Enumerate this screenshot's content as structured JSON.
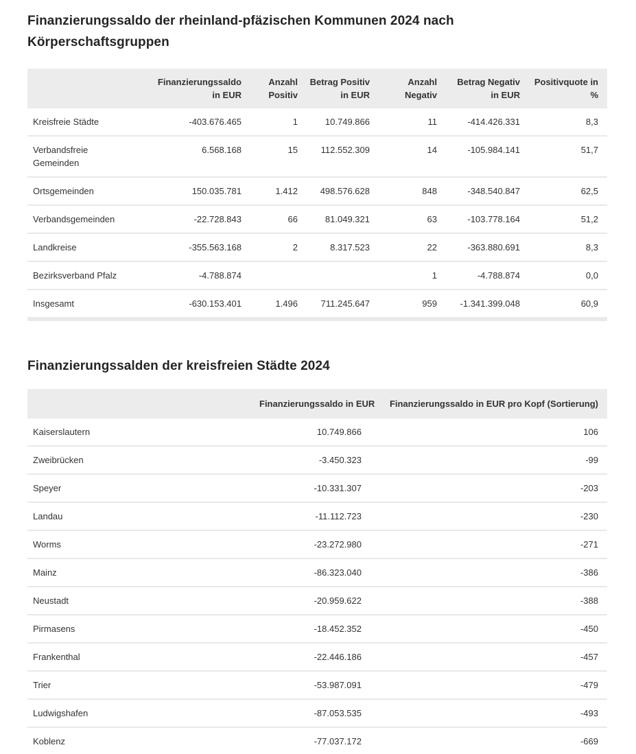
{
  "colors": {
    "header_background": "#ececec",
    "row_divider": "#e8e8e8",
    "footer_bar": "#e9e9e9",
    "heading_text": "#252525",
    "body_text": "#333333"
  },
  "chart_data": [
    {
      "type": "table",
      "title": "Finanzierungssaldo der rheinland-pfäzischen Kommunen 2024 nach Körperschaftsgruppen",
      "columns": [
        "",
        "Finanzierungssaldo in EUR",
        "Anzahl Positiv",
        "Betrag Positiv in EUR",
        "Anzahl Negativ",
        "Betrag Negativ in EUR",
        "Positivquote in %"
      ],
      "display_headers": [
        "",
        "Finanzierungssaldo\nin EUR",
        "Anzahl\nPositiv",
        "Betrag Positiv\nin EUR",
        "Anzahl\nNegativ",
        "Betrag Negativ\nin EUR",
        "Positivquote in\n%"
      ],
      "rows": [
        [
          "Kreisfreie Städte",
          "-403.676.465",
          "1",
          "10.749.866",
          "11",
          "-414.426.331",
          "8,3"
        ],
        [
          "Verbandsfreie Gemeinden",
          "6.568.168",
          "15",
          "112.552.309",
          "14",
          "-105.984.141",
          "51,7"
        ],
        [
          "Ortsgemeinden",
          "150.035.781",
          "1.412",
          "498.576.628",
          "848",
          "-348.540.847",
          "62,5"
        ],
        [
          "Verbandsgemeinden",
          "-22.728.843",
          "66",
          "81.049.321",
          "63",
          "-103.778.164",
          "51,2"
        ],
        [
          "Landkreise",
          "-355.563.168",
          "2",
          "8.317.523",
          "22",
          "-363.880.691",
          "8,3"
        ],
        [
          "Bezirksverband Pfalz",
          "-4.788.874",
          "",
          "",
          "1",
          "-4.788.874",
          "0,0"
        ],
        [
          "Insgesamt",
          "-630.153.401",
          "1.496",
          "711.245.647",
          "959",
          "-1.341.399.048",
          "60,9"
        ]
      ]
    },
    {
      "type": "table",
      "title": "Finanzierungssalden der kreisfreien Städte 2024",
      "columns": [
        "",
        "Finanzierungssaldo in EUR",
        "Finanzierungssaldo in EUR pro Kopf (Sortierung)"
      ],
      "display_headers": [
        "",
        "Finanzierungssaldo in EUR",
        "Finanzierungssaldo in EUR pro Kopf (Sortierung)"
      ],
      "rows": [
        [
          "Kaiserslautern",
          "10.749.866",
          "106"
        ],
        [
          "Zweibrücken",
          "-3.450.323",
          "-99"
        ],
        [
          "Speyer",
          "-10.331.307",
          "-203"
        ],
        [
          "Landau",
          "-11.112.723",
          "-230"
        ],
        [
          "Worms",
          "-23.272.980",
          "-271"
        ],
        [
          "Mainz",
          "-86.323.040",
          "-386"
        ],
        [
          "Neustadt",
          "-20.959.622",
          "-388"
        ],
        [
          "Pirmasens",
          "-18.452.352",
          "-450"
        ],
        [
          "Frankenthal",
          "-22.446.186",
          "-457"
        ],
        [
          "Trier",
          "-53.987.091",
          "-479"
        ],
        [
          "Ludwigshafen",
          "-87.053.535",
          "-493"
        ],
        [
          "Koblenz",
          "-77.037.172",
          "-669"
        ]
      ]
    }
  ]
}
